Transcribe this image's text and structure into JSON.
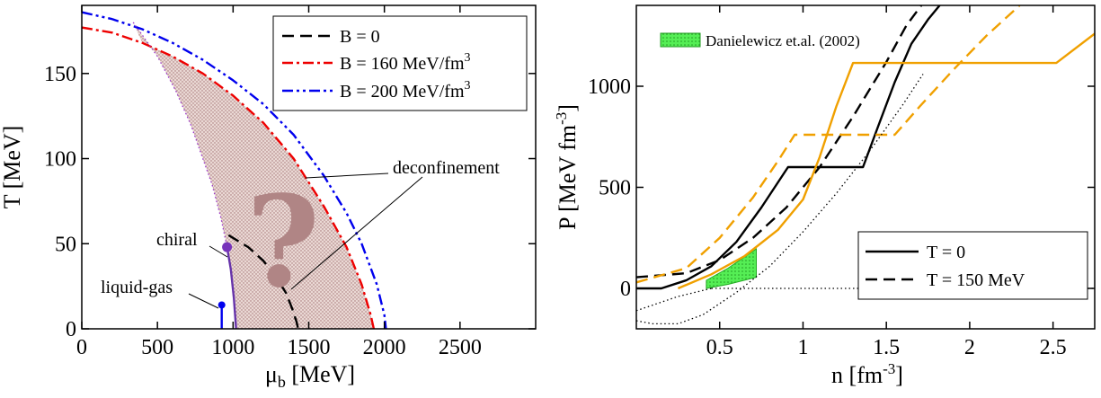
{
  "chart_data": [
    {
      "type": "line",
      "xlabel_main": "μ",
      "xlabel_sub": "b",
      "xlabel_unit": " [MeV]",
      "ylabel": "T [MeV]",
      "xlim": [
        0,
        3000
      ],
      "ylim": [
        0,
        190
      ],
      "xticks": [
        0,
        500,
        1000,
        1500,
        2000,
        2500
      ],
      "yticks": [
        0,
        50,
        100,
        150
      ],
      "legend_position": "top-right",
      "legend": [
        {
          "label": "B = 0",
          "sup": "",
          "color": "#000000",
          "style": "dashed"
        },
        {
          "label": "B = 160 MeV/fm",
          "sup": "3",
          "color": "#ee0000",
          "style": "dash-dot"
        },
        {
          "label": "B = 200 MeV/fm",
          "sup": "3",
          "color": "#0000ee",
          "style": "dash-dot-dot"
        }
      ],
      "series": [
        {
          "id": "b0",
          "color": "#000000",
          "style": "dashed",
          "x": [
            970,
            1100,
            1200,
            1280,
            1350,
            1390,
            1420,
            1430
          ],
          "y": [
            55,
            48,
            40,
            31,
            21,
            12,
            4,
            0
          ]
        },
        {
          "id": "b160",
          "color": "#ee0000",
          "style": "dash-dot",
          "x": [
            0,
            200,
            400,
            600,
            800,
            1000,
            1200,
            1400,
            1600,
            1750,
            1850,
            1910,
            1930
          ],
          "y": [
            177,
            174,
            168,
            160,
            150,
            137,
            121,
            100,
            72,
            48,
            26,
            8,
            0
          ]
        },
        {
          "id": "b200",
          "color": "#0000ee",
          "style": "dash-dot-dot",
          "x": [
            0,
            200,
            400,
            600,
            800,
            1000,
            1200,
            1400,
            1600,
            1750,
            1850,
            1950,
            2000,
            2010
          ],
          "y": [
            186,
            182,
            176,
            168,
            158,
            146,
            132,
            114,
            90,
            68,
            50,
            26,
            8,
            0
          ]
        },
        {
          "id": "purple-dotted",
          "color": "#9933cc",
          "style": "dotted",
          "x": [
            340,
            500,
            620,
            720,
            800,
            860,
            920,
            960
          ],
          "y": [
            180,
            160,
            140,
            120,
            100,
            85,
            65,
            48
          ]
        },
        {
          "id": "chiral",
          "color": "#6633aa",
          "style": "solid",
          "x": [
            960,
            985,
            1005,
            1020
          ],
          "y": [
            48,
            35,
            18,
            0
          ]
        },
        {
          "id": "liquid-gas",
          "color": "#0000ee",
          "style": "solid",
          "x": [
            925,
            925
          ],
          "y": [
            14,
            0
          ]
        }
      ],
      "points": [
        {
          "id": "chiral-endpoint",
          "x": 960,
          "y": 48,
          "color": "#7733bb"
        },
        {
          "id": "liquid-gas-endpoint",
          "x": 925,
          "y": 14,
          "color": "#0000ee"
        }
      ],
      "annotations": {
        "deconfinement": "deconfinement",
        "chiral": "chiral",
        "liquid_gas": "liquid-gas",
        "question": "?"
      }
    },
    {
      "type": "line",
      "xlabel_main": "n [fm",
      "xlabel_sup": "-3",
      "xlabel_end": "]",
      "ylabel_main": "P [MeV fm",
      "ylabel_sup": "-3",
      "ylabel_end": "]",
      "xlim": [
        0,
        2.75
      ],
      "ylim": [
        -200,
        1400
      ],
      "xticks": [
        "0.5",
        "1",
        "1.5",
        "2",
        "2.5"
      ],
      "yticks": [
        "0",
        "500",
        "1000"
      ],
      "band_label": "Danielewicz et.al. (2002)",
      "legend_position": "bottom-right",
      "legend": [
        {
          "label": "T = 0",
          "style": "solid"
        },
        {
          "label": "T = 150 MeV",
          "style": "dashed"
        }
      ],
      "series": [
        {
          "id": "black-solid",
          "color": "#000000",
          "style": "solid",
          "x": [
            0,
            0.15,
            0.3,
            0.45,
            0.6,
            0.75,
            0.91,
            1.36,
            1.45,
            1.55,
            1.65,
            1.75,
            1.82
          ],
          "y": [
            0,
            0,
            40,
            110,
            230,
            400,
            600,
            600,
            800,
            1020,
            1210,
            1330,
            1400
          ]
        },
        {
          "id": "black-dashed",
          "color": "#000000",
          "style": "dashed",
          "x": [
            0,
            0.3,
            0.5,
            0.7,
            0.9,
            1.1,
            1.3,
            1.5,
            1.62,
            1.71
          ],
          "y": [
            55,
            75,
            140,
            250,
            400,
            600,
            850,
            1120,
            1300,
            1400
          ]
        },
        {
          "id": "orange-solid",
          "color": "#f0a000",
          "style": "solid",
          "x": [
            0.25,
            0.45,
            0.65,
            0.85,
            1.0,
            1.1,
            1.2,
            1.3,
            2.52,
            2.75
          ],
          "y": [
            0,
            70,
            160,
            290,
            440,
            650,
            900,
            1115,
            1115,
            1260
          ]
        },
        {
          "id": "orange-dashed",
          "color": "#f0a000",
          "style": "dashed",
          "x": [
            0,
            0.3,
            0.5,
            0.7,
            0.85,
            0.95,
            1.55,
            1.7,
            1.9,
            2.1,
            2.3
          ],
          "y": [
            30,
            100,
            250,
            450,
            630,
            760,
            760,
            900,
            1080,
            1250,
            1400
          ]
        },
        {
          "id": "dotted-curve",
          "color": "#000000",
          "style": "dotted",
          "x": [
            0,
            0.1,
            0.25,
            0.4,
            0.6,
            0.8,
            1.0,
            1.2,
            1.4,
            1.6,
            1.72
          ],
          "y": [
            -160,
            -175,
            -175,
            -130,
            -20,
            110,
            280,
            470,
            680,
            910,
            1060
          ]
        },
        {
          "id": "zero-line",
          "color": "#000000",
          "style": "dotted",
          "x": [
            0.45,
            2.75
          ],
          "y": [
            0,
            0
          ]
        },
        {
          "id": "dotted-start",
          "color": "#000000",
          "style": "dotted",
          "x": [
            0,
            0.25,
            0.45
          ],
          "y": [
            -110,
            -40,
            0
          ]
        }
      ],
      "band": {
        "upper": {
          "x": [
            0.42,
            0.55,
            0.72
          ],
          "y": [
            40,
            100,
            195
          ]
        },
        "lower": {
          "x": [
            0.42,
            0.55,
            0.72
          ],
          "y": [
            0,
            20,
            55
          ]
        }
      }
    }
  ]
}
